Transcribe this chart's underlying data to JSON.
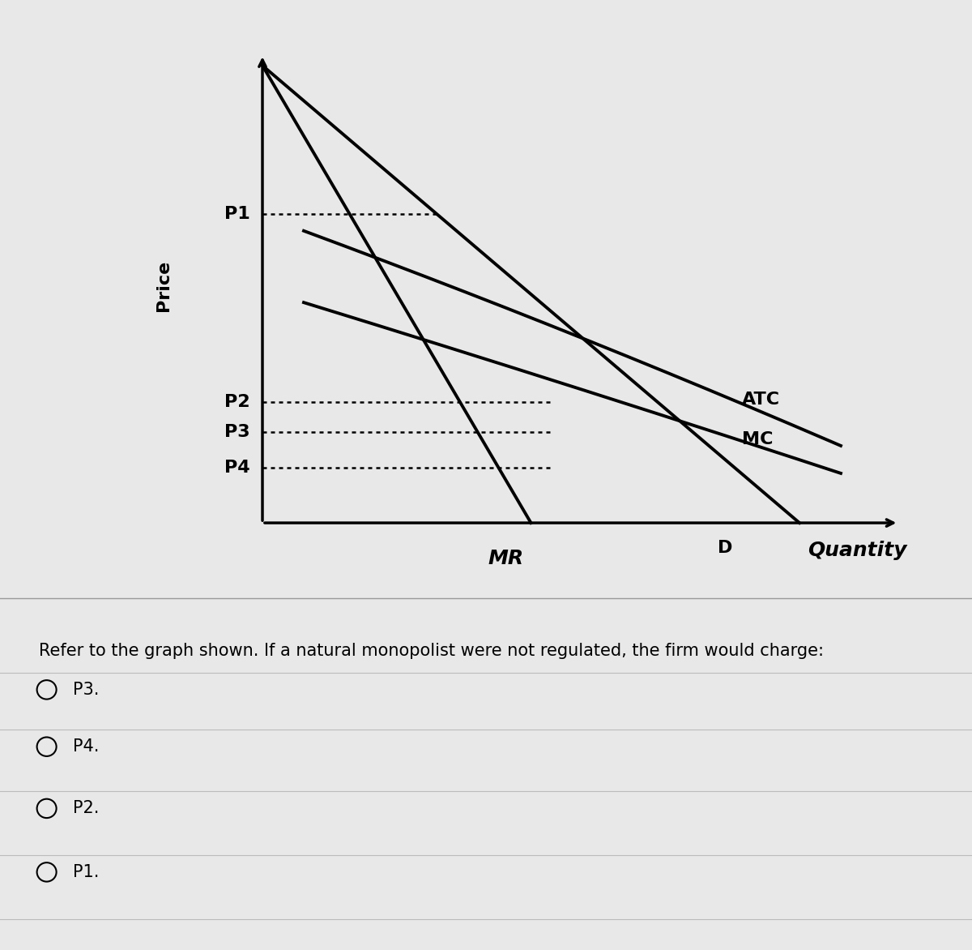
{
  "background_color": "#e8e8e8",
  "fig_width": 12.0,
  "fig_height": 11.72,
  "ylabel": "Price",
  "xlabel": "Quantity",
  "D_label": "D",
  "MR_label": "MR",
  "ATC_label": "ATC",
  "MC_label": "MC",
  "question_text": "Refer to the graph shown. If a natural monopolist were not regulated, the firm would charge:",
  "options": [
    "P3.",
    "P4.",
    "P2.",
    "P1."
  ],
  "option_font_size": 15,
  "question_font_size": 15,
  "label_font_size": 16,
  "axis_label_font_size": 13
}
